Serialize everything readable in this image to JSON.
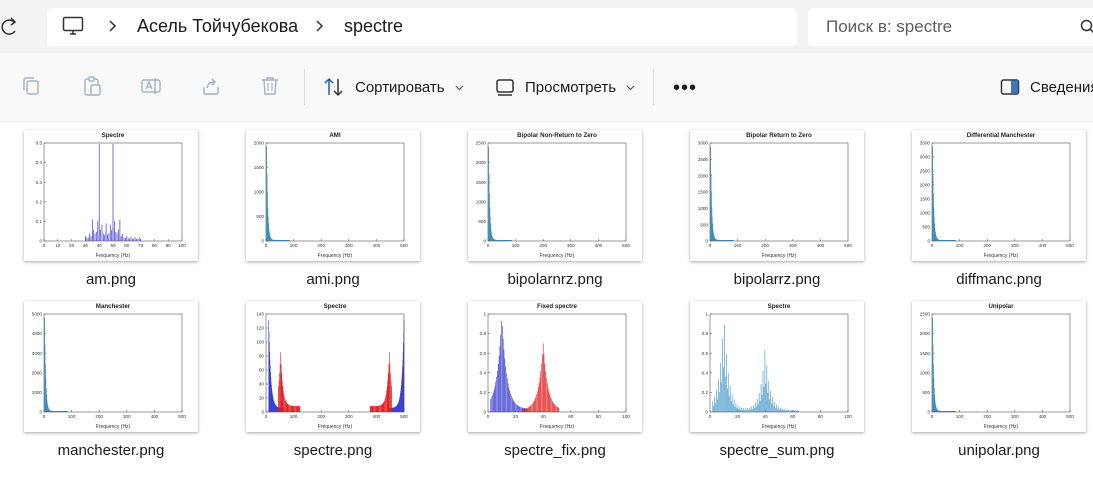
{
  "address": {
    "crumbs": [
      "Асель Тойчубекова",
      "spectre"
    ],
    "search_placeholder": "Поиск в: spectre"
  },
  "toolbar": {
    "sort_label": "Сортировать",
    "view_label": "Просмотреть",
    "details_label": "Сведения",
    "more_label": "•••"
  },
  "files": [
    {
      "name": "am.png",
      "plot_title": "Spectre",
      "xlabel": "Frequency (Hz)",
      "xticks": [
        "0",
        "10",
        "20",
        "30",
        "40",
        "50",
        "60",
        "70",
        "80",
        "90",
        "100"
      ],
      "yticks": [
        "0",
        "0.1",
        "0.2",
        "0.3",
        "0.4",
        "0.5"
      ]
    },
    {
      "name": "ami.png",
      "plot_title": "AMI",
      "xlabel": "Frequency (Hz)",
      "xticks": [
        "0",
        "100",
        "200",
        "300",
        "400",
        "500"
      ],
      "yticks": [
        "0",
        "500",
        "1000",
        "1500",
        "2000"
      ]
    },
    {
      "name": "bipolarnrz.png",
      "plot_title": "Bipolar Non-Return to Zero",
      "xlabel": "Frequency (Hz)",
      "xticks": [
        "0",
        "100",
        "200",
        "300",
        "400",
        "500"
      ],
      "yticks": [
        "0",
        "500",
        "1000",
        "1500",
        "2000",
        "2500"
      ]
    },
    {
      "name": "bipolarrz.png",
      "plot_title": "Bipolar Return to Zero",
      "xlabel": "Frequency (Hz)",
      "xticks": [
        "0",
        "100",
        "200",
        "300",
        "400",
        "500"
      ],
      "yticks": [
        "0",
        "500",
        "1000",
        "1500",
        "2000",
        "2500",
        "3000"
      ]
    },
    {
      "name": "diffmanc.png",
      "plot_title": "Differential Manchester",
      "xlabel": "Frequency (Hz)",
      "xticks": [
        "0",
        "100",
        "200",
        "300",
        "400",
        "500"
      ],
      "yticks": [
        "0",
        "500",
        "1000",
        "1500",
        "2000",
        "2500",
        "3000",
        "3500"
      ]
    },
    {
      "name": "manchester.png",
      "plot_title": "Manchester",
      "xlabel": "Frequency (Hz)",
      "xticks": [
        "0",
        "100",
        "200",
        "300",
        "400",
        "500"
      ],
      "yticks": [
        "0",
        "1000",
        "2000",
        "3000",
        "4000",
        "5000"
      ]
    },
    {
      "name": "spectre.png",
      "plot_title": "Spectre",
      "xlabel": "Frequency (Hz)",
      "xticks": [
        "0",
        "100",
        "200",
        "300",
        "400",
        "500"
      ],
      "yticks": [
        "0",
        "20",
        "40",
        "60",
        "80",
        "100",
        "120",
        "140"
      ]
    },
    {
      "name": "spectre_fix.png",
      "plot_title": "Fixed spectre",
      "xlabel": "Frequency (Hz)",
      "xticks": [
        "0",
        "20",
        "40",
        "60",
        "80",
        "100"
      ],
      "yticks": [
        "0",
        "0.2",
        "0.4",
        "0.6",
        "0.8",
        "1"
      ]
    },
    {
      "name": "spectre_sum.png",
      "plot_title": "Spectre",
      "xlabel": "Frequency (Hz)",
      "xticks": [
        "0",
        "20",
        "40",
        "60",
        "80",
        "100"
      ],
      "yticks": [
        "0",
        "0.2",
        "0.4",
        "0.6",
        "0.8",
        "1"
      ]
    },
    {
      "name": "unipolar.png",
      "plot_title": "Unipolar",
      "xlabel": "Frequency (Hz)",
      "xticks": [
        "0",
        "100",
        "200",
        "300",
        "400",
        "500"
      ],
      "yticks": [
        "0",
        "500",
        "1000",
        "1500",
        "2000",
        "2500"
      ]
    }
  ],
  "colors": {
    "plot_blue": "#3b3fd0",
    "plot_cyan": "#3a8fc4",
    "plot_red": "#e02020"
  }
}
